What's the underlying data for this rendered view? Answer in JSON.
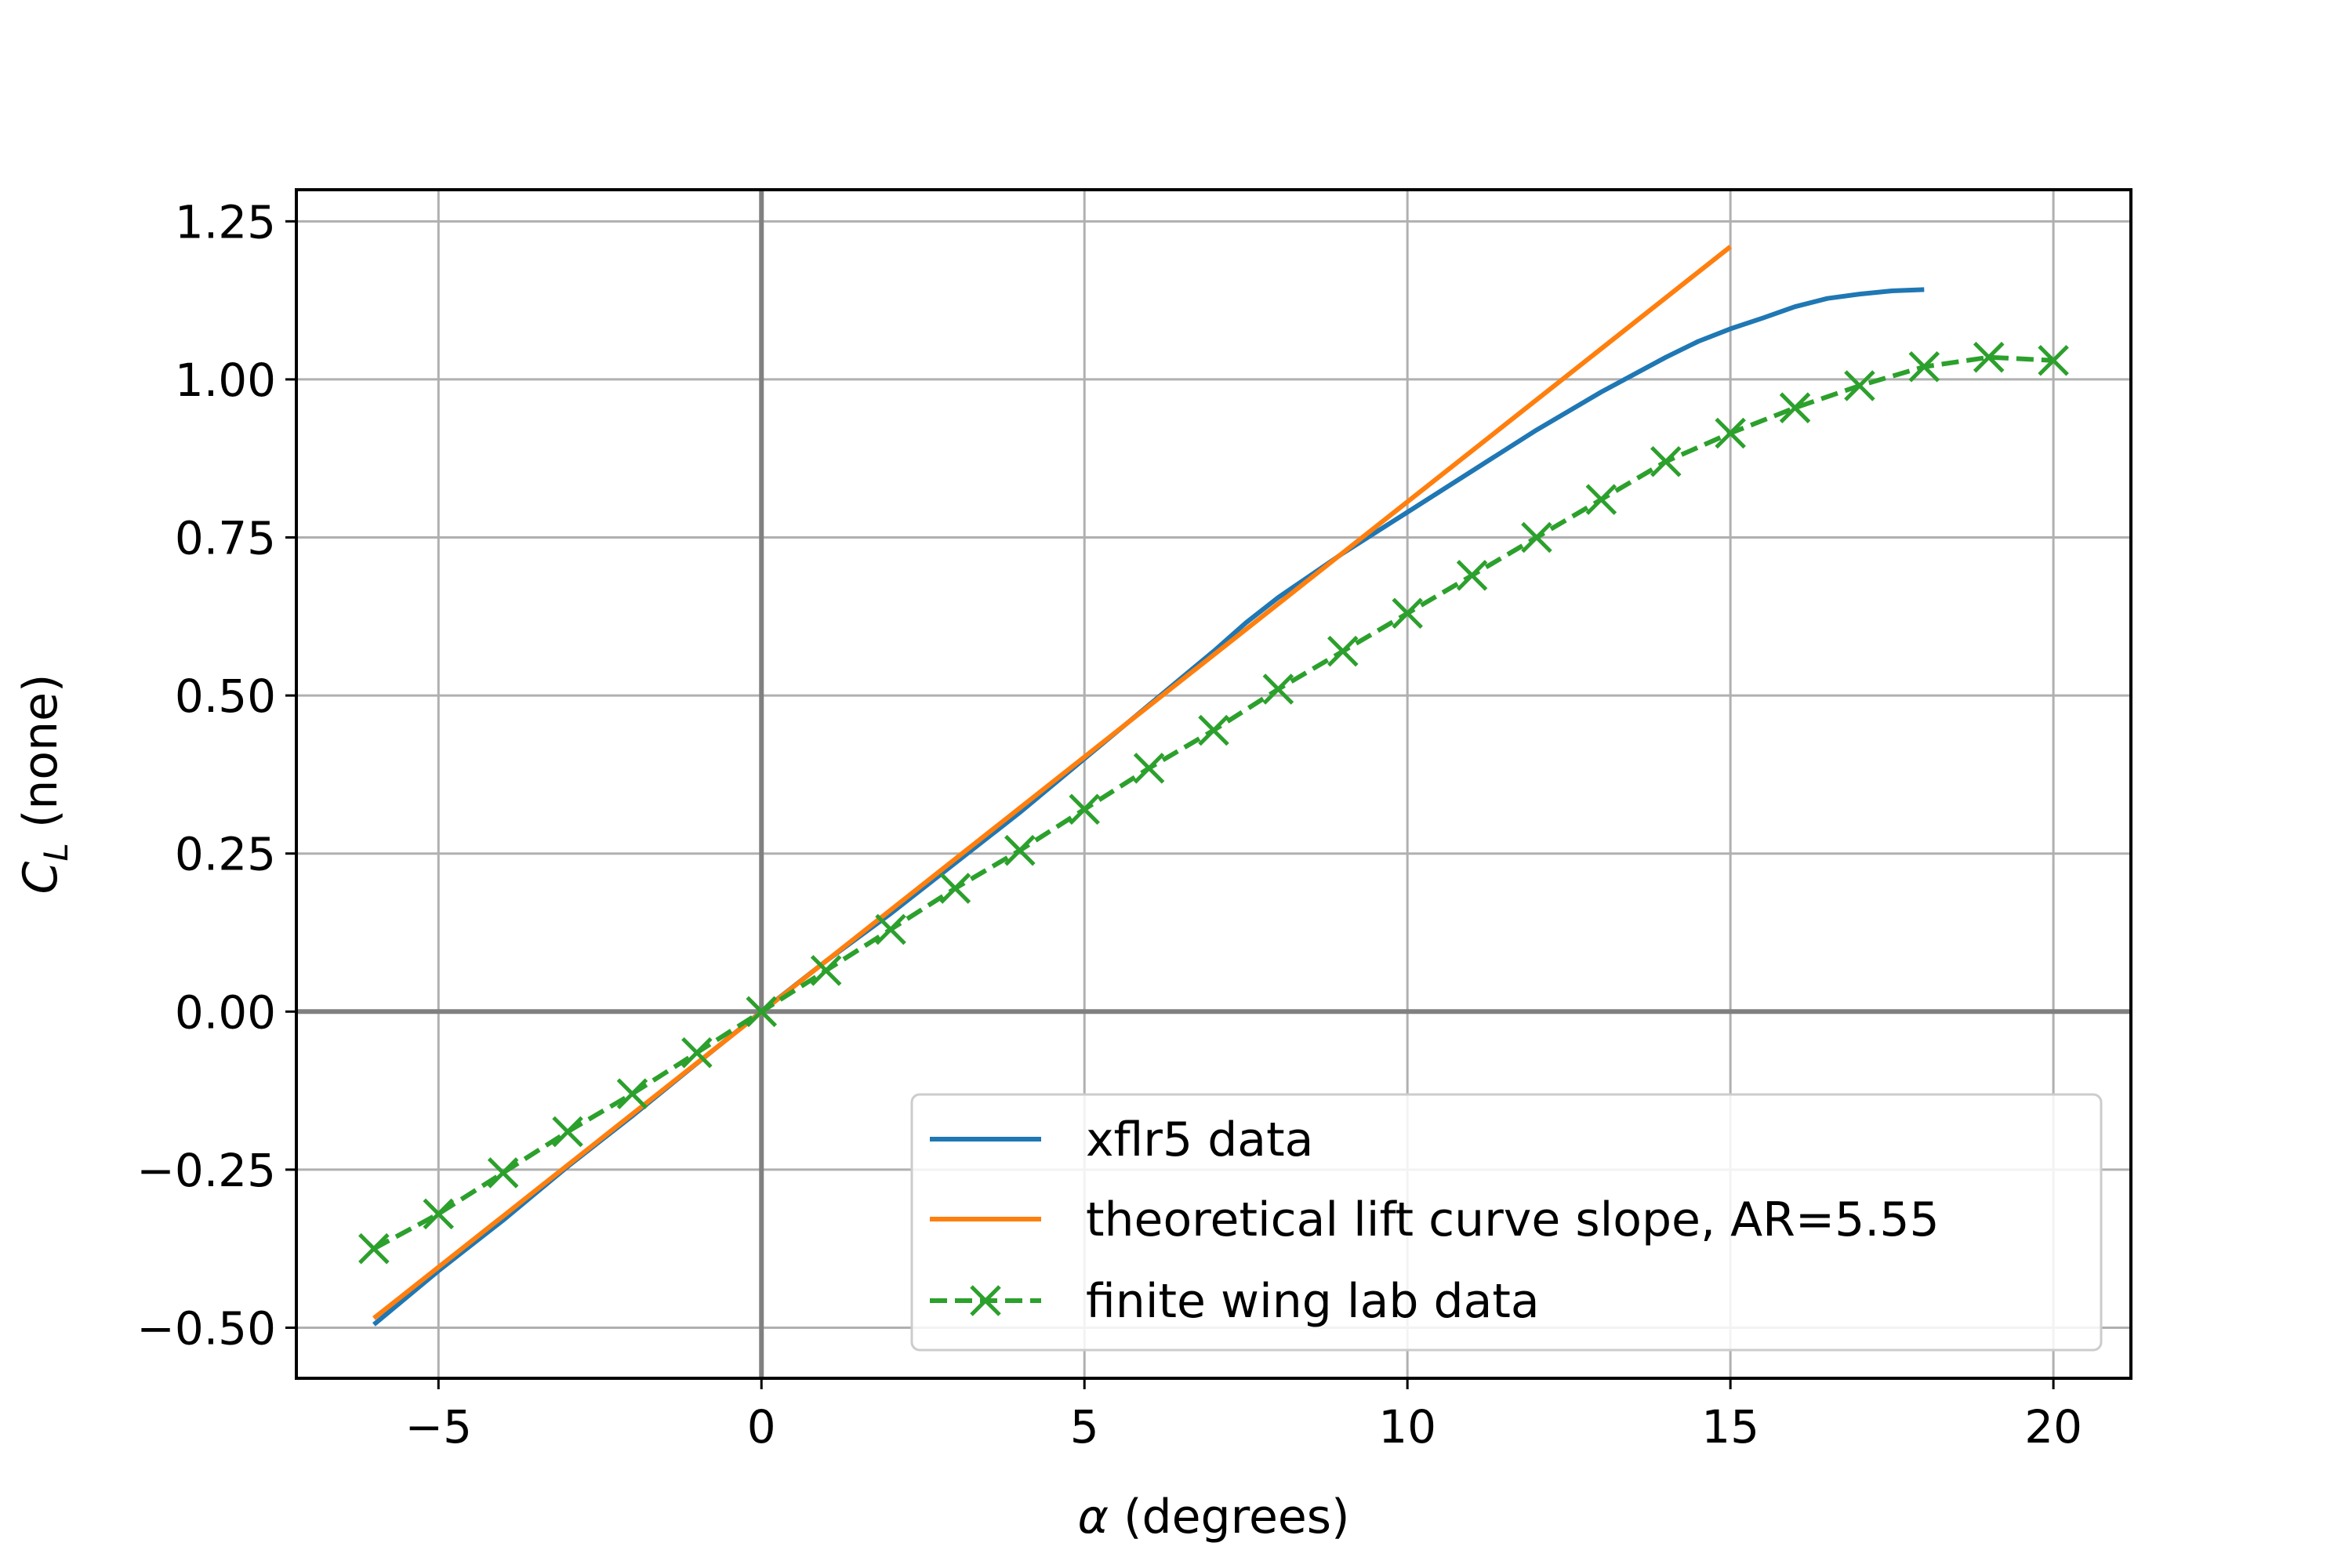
{
  "chart_data": {
    "type": "line",
    "title": "",
    "xlabel": "α (degrees)",
    "xlabel_parts": {
      "symbol": "α",
      "rest": " (degrees)"
    },
    "ylabel": "C_L (none)",
    "ylabel_parts": {
      "symbol": "C",
      "subscript": "L",
      "rest": " (none)"
    },
    "xlim": [
      -7.2,
      21.2
    ],
    "ylim": [
      -0.58,
      1.3
    ],
    "xticks": [
      -5,
      0,
      5,
      10,
      15,
      20
    ],
    "xtick_labels": [
      "−5",
      "0",
      "5",
      "10",
      "15",
      "20"
    ],
    "yticks": [
      -0.5,
      -0.25,
      0.0,
      0.25,
      0.5,
      0.75,
      1.0,
      1.25
    ],
    "ytick_labels": [
      "−0.50",
      "−0.25",
      "0.00",
      "0.25",
      "0.50",
      "0.75",
      "1.00",
      "1.25"
    ],
    "grid": true,
    "zero_lines": true,
    "legend_position": "lower-right",
    "series": [
      {
        "name": "xflr5 data",
        "color": "#1f77b4",
        "style": "solid",
        "marker": "none",
        "x": [
          -6,
          -5,
          -4,
          -3,
          -2,
          -1,
          0,
          1,
          2,
          3,
          4,
          5,
          6,
          7,
          7.5,
          8,
          9,
          10,
          11,
          12,
          13,
          14,
          14.5,
          15,
          15.5,
          16,
          16.5,
          17,
          17.5,
          18
        ],
        "y": [
          -0.495,
          -0.41,
          -0.33,
          -0.245,
          -0.165,
          -0.082,
          0.0,
          0.08,
          0.155,
          0.235,
          0.315,
          0.4,
          0.485,
          0.57,
          0.615,
          0.655,
          0.725,
          0.79,
          0.855,
          0.92,
          0.98,
          1.035,
          1.06,
          1.08,
          1.097,
          1.115,
          1.128,
          1.135,
          1.14,
          1.142
        ]
      },
      {
        "name": "theoretical lift curve slope, AR=5.55",
        "color": "#ff7f0e",
        "style": "solid",
        "marker": "none",
        "x": [
          -6,
          15
        ],
        "y": [
          -0.485,
          1.21
        ]
      },
      {
        "name": "finite wing lab data",
        "color": "#2ca02c",
        "style": "dashed",
        "marker": "x",
        "x": [
          -6,
          -5,
          -4,
          -3,
          -2,
          -1,
          0,
          1,
          2,
          3,
          4,
          5,
          6,
          7,
          8,
          9,
          10,
          11,
          12,
          13,
          14,
          15,
          16,
          17,
          18,
          19,
          20
        ],
        "y": [
          -0.375,
          -0.32,
          -0.255,
          -0.19,
          -0.13,
          -0.065,
          0.0,
          0.065,
          0.13,
          0.195,
          0.255,
          0.32,
          0.385,
          0.445,
          0.51,
          0.57,
          0.63,
          0.69,
          0.75,
          0.81,
          0.87,
          0.915,
          0.955,
          0.99,
          1.02,
          1.035,
          1.03
        ]
      }
    ]
  }
}
